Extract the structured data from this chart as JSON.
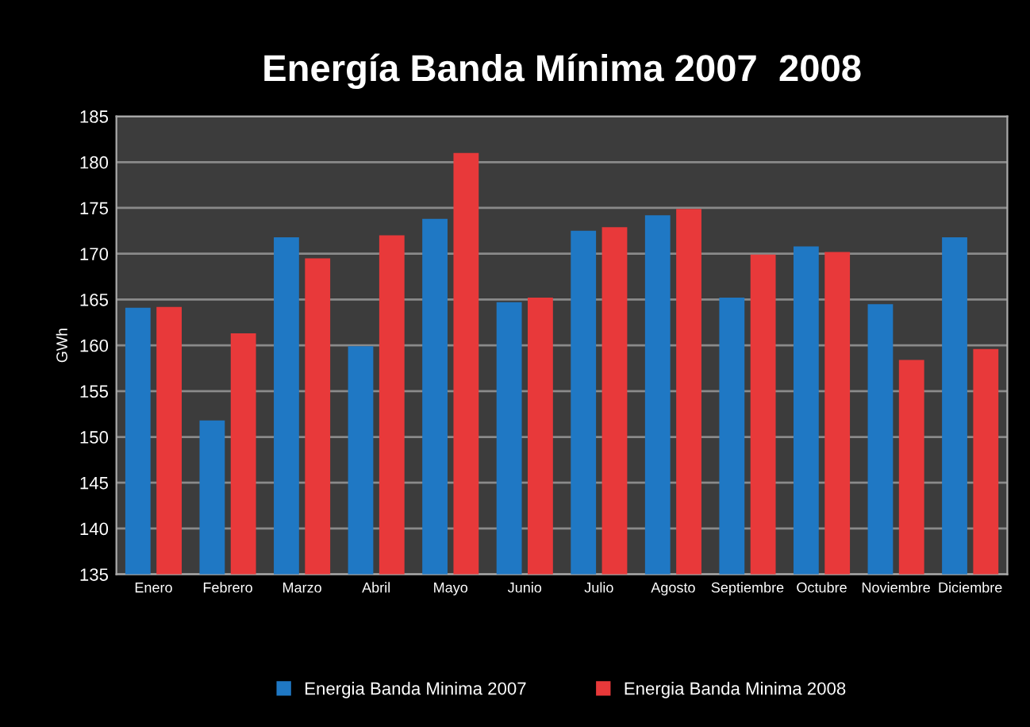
{
  "chart_data": {
    "type": "bar",
    "title": "Energía Banda Mínima 2007  2008",
    "ylabel": "GWh",
    "categories": [
      "Enero",
      "Febrero",
      "Marzo",
      "Abril",
      "Mayo",
      "Junio",
      "Julio",
      "Agosto",
      "Septiembre",
      "Octubre",
      "Noviembre",
      "Diciembre"
    ],
    "series": [
      {
        "name": "Energia Banda Minima 2007",
        "color": "#1f78c4",
        "values": [
          164.1,
          151.8,
          171.8,
          159.9,
          173.8,
          164.7,
          172.5,
          174.2,
          165.2,
          170.8,
          164.5,
          171.8
        ]
      },
      {
        "name": "Energia Banda Minima 2008",
        "color": "#e8393a",
        "values": [
          164.2,
          161.3,
          169.5,
          172.0,
          181.0,
          165.2,
          172.9,
          174.9,
          169.9,
          170.2,
          158.4,
          159.6
        ]
      }
    ],
    "ylim": [
      135,
      185
    ],
    "yticks": [
      135,
      140,
      145,
      150,
      155,
      160,
      165,
      170,
      175,
      180,
      185
    ],
    "grid": "y",
    "legend": "bottom"
  }
}
